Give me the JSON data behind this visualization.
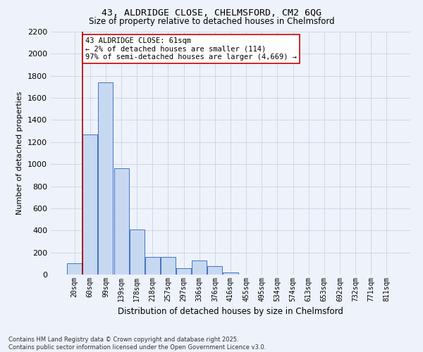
{
  "title_line1": "43, ALDRIDGE CLOSE, CHELMSFORD, CM2 6QG",
  "title_line2": "Size of property relative to detached houses in Chelmsford",
  "xlabel": "Distribution of detached houses by size in Chelmsford",
  "ylabel": "Number of detached properties",
  "footer_line1": "Contains HM Land Registry data © Crown copyright and database right 2025.",
  "footer_line2": "Contains public sector information licensed under the Open Government Licence v3.0.",
  "categories": [
    "20sqm",
    "60sqm",
    "99sqm",
    "139sqm",
    "178sqm",
    "218sqm",
    "257sqm",
    "297sqm",
    "336sqm",
    "376sqm",
    "416sqm",
    "455sqm",
    "495sqm",
    "534sqm",
    "574sqm",
    "613sqm",
    "653sqm",
    "692sqm",
    "732sqm",
    "771sqm",
    "811sqm"
  ],
  "values": [
    100,
    1270,
    1740,
    960,
    410,
    160,
    160,
    60,
    130,
    75,
    20,
    0,
    0,
    0,
    0,
    0,
    0,
    0,
    0,
    0,
    0
  ],
  "bar_color": "#c6d9f1",
  "bar_edge_color": "#4472c4",
  "ylim": [
    0,
    2200
  ],
  "yticks": [
    0,
    200,
    400,
    600,
    800,
    1000,
    1200,
    1400,
    1600,
    1800,
    2000,
    2200
  ],
  "grid_color": "#c8d4e8",
  "background_color": "#eef2fa",
  "annotation_text": "43 ALDRIDGE CLOSE: 61sqm\n← 2% of detached houses are smaller (114)\n97% of semi-detached houses are larger (4,669) →",
  "vline_x_index": 1,
  "vline_color": "#aa0000",
  "annotation_box_facecolor": "#ffffff",
  "annotation_box_edgecolor": "#cc0000",
  "title1_fontsize": 9.5,
  "title2_fontsize": 8.5,
  "ylabel_fontsize": 8,
  "xlabel_fontsize": 8.5,
  "ytick_fontsize": 8,
  "xtick_fontsize": 7,
  "annot_fontsize": 7.5,
  "footer_fontsize": 6
}
